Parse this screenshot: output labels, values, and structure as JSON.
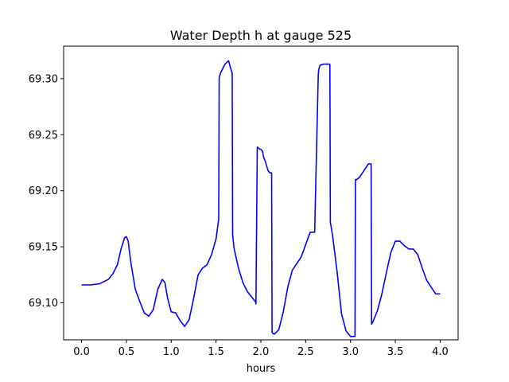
{
  "chart_data": {
    "type": "line",
    "title": "Water Depth h at gauge 525",
    "xlabel": "hours",
    "ylabel": "",
    "xlim": [
      -0.2,
      4.2
    ],
    "ylim": [
      69.067,
      69.329
    ],
    "xticks": [
      0.0,
      0.5,
      1.0,
      1.5,
      2.0,
      2.5,
      3.0,
      3.5,
      4.0
    ],
    "xtick_labels": [
      "0.0",
      "0.5",
      "1.0",
      "1.5",
      "2.0",
      "2.5",
      "3.0",
      "3.5",
      "4.0"
    ],
    "yticks": [
      69.1,
      69.15,
      69.2,
      69.25,
      69.3
    ],
    "ytick_labels": [
      "69.10",
      "69.15",
      "69.20",
      "69.25",
      "69.30"
    ],
    "grid": false,
    "color": "#0000ff",
    "series": [
      {
        "name": "",
        "x": [
          0.0,
          0.1,
          0.2,
          0.3,
          0.35,
          0.4,
          0.44,
          0.48,
          0.5,
          0.52,
          0.55,
          0.6,
          0.65,
          0.7,
          0.75,
          0.8,
          0.85,
          0.9,
          0.93,
          0.96,
          1.0,
          1.05,
          1.1,
          1.15,
          1.2,
          1.25,
          1.3,
          1.35,
          1.4,
          1.45,
          1.5,
          1.53,
          1.535,
          1.55,
          1.6,
          1.64,
          1.66,
          1.68,
          1.685,
          1.7,
          1.75,
          1.8,
          1.85,
          1.9,
          1.94,
          1.945,
          1.96,
          1.99,
          2.0,
          2.02,
          2.03,
          2.05,
          2.08,
          2.1,
          2.12,
          2.125,
          2.13,
          2.15,
          2.2,
          2.25,
          2.3,
          2.35,
          2.4,
          2.45,
          2.5,
          2.55,
          2.6,
          2.64,
          2.645,
          2.66,
          2.7,
          2.75,
          2.77,
          2.775,
          2.8,
          2.85,
          2.9,
          2.95,
          3.0,
          3.03,
          3.05,
          3.055,
          3.07,
          3.1,
          3.15,
          3.2,
          3.23,
          3.235,
          3.25,
          3.3,
          3.35,
          3.4,
          3.45,
          3.5,
          3.55,
          3.6,
          3.65,
          3.7,
          3.75,
          3.8,
          3.85,
          3.9,
          3.95,
          4.0
        ],
        "y": [
          69.116,
          69.116,
          69.117,
          69.121,
          69.126,
          69.134,
          69.148,
          69.158,
          69.159,
          69.155,
          69.136,
          69.112,
          69.101,
          69.091,
          69.088,
          69.094,
          69.112,
          69.121,
          69.118,
          69.104,
          69.092,
          69.091,
          69.084,
          69.079,
          69.085,
          69.104,
          69.125,
          69.131,
          69.134,
          69.143,
          69.157,
          69.175,
          69.301,
          69.305,
          69.313,
          69.316,
          69.31,
          69.305,
          69.161,
          69.149,
          69.131,
          69.118,
          69.11,
          69.105,
          69.101,
          69.099,
          69.239,
          69.237,
          69.237,
          69.235,
          69.23,
          69.226,
          69.218,
          69.216,
          69.216,
          69.074,
          69.073,
          69.072,
          69.076,
          69.092,
          69.114,
          69.129,
          69.135,
          69.141,
          69.152,
          69.163,
          69.163,
          69.303,
          69.308,
          69.312,
          69.313,
          69.313,
          69.313,
          69.172,
          69.16,
          69.128,
          69.09,
          69.075,
          69.07,
          69.07,
          69.07,
          69.21,
          69.21,
          69.212,
          69.218,
          69.224,
          69.224,
          69.081,
          69.083,
          69.093,
          69.108,
          69.127,
          69.145,
          69.155,
          69.155,
          69.151,
          69.148,
          69.148,
          69.143,
          69.131,
          69.12,
          69.114,
          69.108,
          69.108
        ]
      }
    ]
  }
}
